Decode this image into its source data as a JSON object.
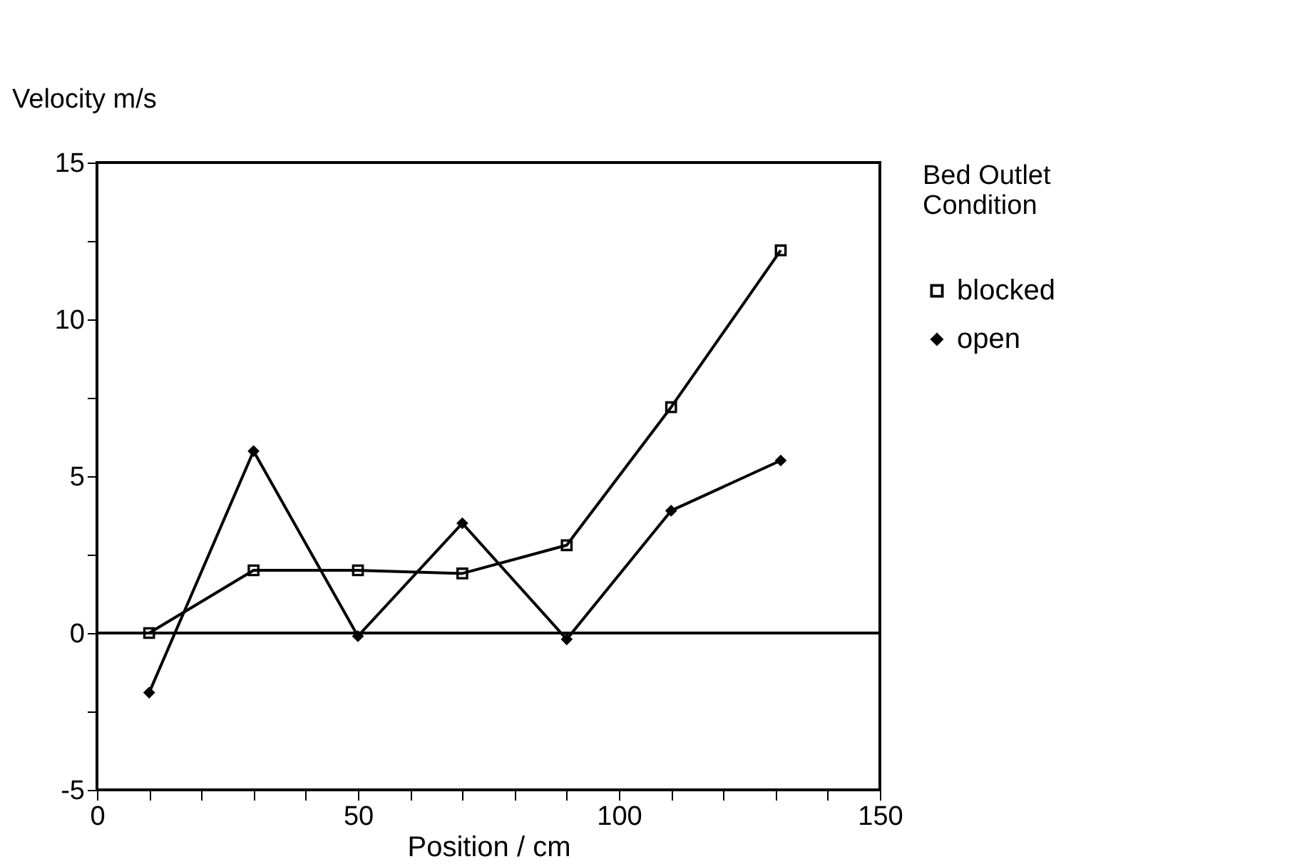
{
  "chart_data": {
    "type": "line",
    "xlabel": "Position / cm",
    "ylabel": "Velocity m/s",
    "legend_title": "Bed Outlet Condition",
    "legend": "right",
    "xlim": [
      0,
      150
    ],
    "ylim": [
      -5,
      15
    ],
    "xticks": [
      0,
      {
        "value": 10,
        "label": null
      },
      {
        "value": 20,
        "label": null
      },
      {
        "value": 30,
        "label": null
      },
      {
        "value": 40,
        "label": null
      },
      50,
      {
        "value": 60,
        "label": null
      },
      {
        "value": 70,
        "label": null
      },
      {
        "value": 80,
        "label": null
      },
      {
        "value": 90,
        "label": null
      },
      100,
      {
        "value": 110,
        "label": null
      },
      {
        "value": 120,
        "label": null
      },
      {
        "value": 130,
        "label": null
      },
      {
        "value": 140,
        "label": null
      },
      150
    ],
    "yticks": [
      -5,
      {
        "value": -2.5,
        "label": null
      },
      0,
      {
        "value": 2.5,
        "label": null
      },
      5,
      {
        "value": 7.5,
        "label": null
      },
      10,
      {
        "value": 12.5,
        "label": null
      },
      15
    ],
    "x": [
      10,
      30,
      50,
      70,
      90,
      110,
      131
    ],
    "series": [
      {
        "name": "blocked",
        "color": "#000000",
        "marker": "square",
        "values": [
          0,
          2,
          2,
          1.9,
          2.8,
          7.2,
          12.2
        ]
      },
      {
        "name": "open",
        "color": "#000000",
        "marker": "diamond",
        "values": [
          -1.9,
          5.8,
          -0.1,
          3.5,
          -0.2,
          3.9,
          5.5
        ]
      }
    ],
    "ref_lines": [
      {
        "axis": "y",
        "value": 0,
        "color": "#000000"
      }
    ],
    "grid": false
  }
}
